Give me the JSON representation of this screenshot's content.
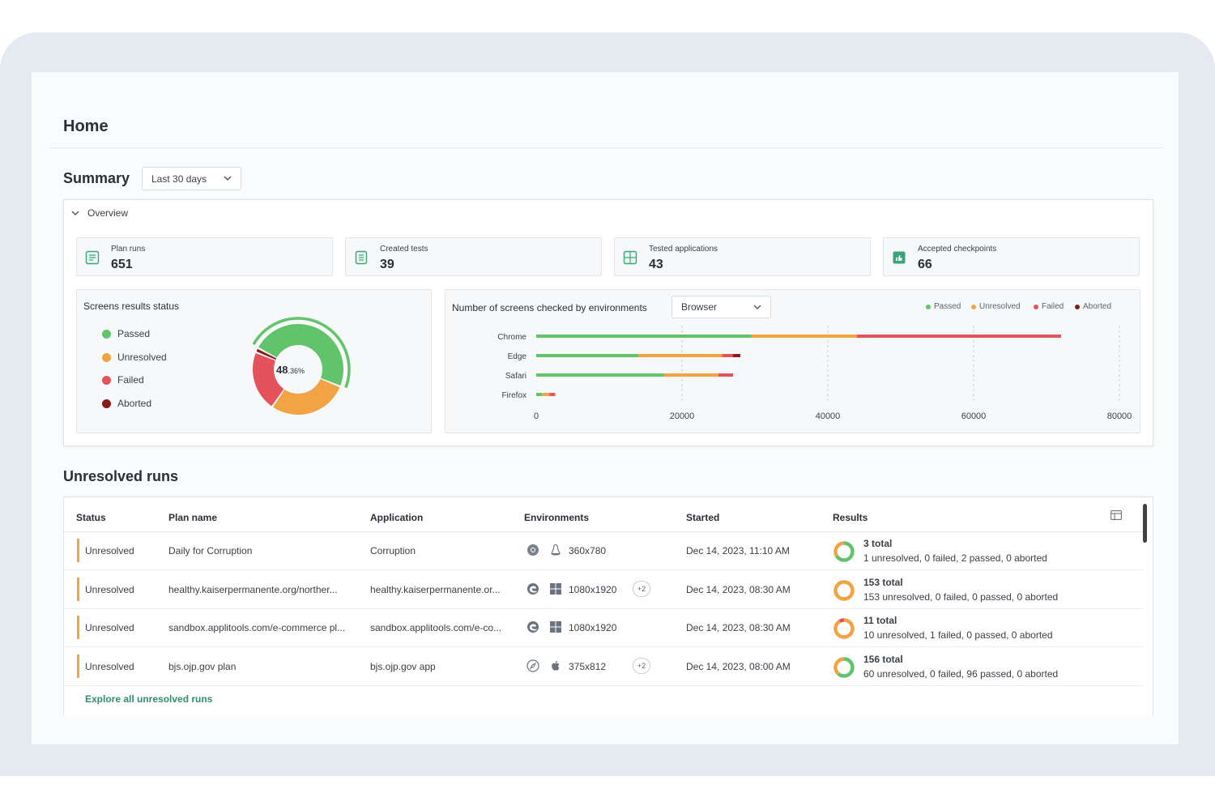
{
  "page": {
    "title": "Home"
  },
  "summary": {
    "title": "Summary",
    "range": {
      "selected": "Last 30 days"
    },
    "overview_label": "Overview",
    "stats": [
      {
        "label": "Plan runs",
        "value": "651",
        "icon": "plan-runs-icon"
      },
      {
        "label": "Created tests",
        "value": "39",
        "icon": "created-tests-icon"
      },
      {
        "label": "Tested applications",
        "value": "43",
        "icon": "tested-applications-icon"
      },
      {
        "label": "Accepted checkpoints",
        "value": "66",
        "icon": "accepted-checkpoints-icon"
      }
    ]
  },
  "screens_status": {
    "title": "Screens results status",
    "legend": [
      "Passed",
      "Unresolved",
      "Failed",
      "Aborted"
    ],
    "center_value": "48",
    "center_decimal": ".36%"
  },
  "env_chart": {
    "title": "Number of screens checked by environments",
    "selected": "Browser",
    "legend": [
      "Passed",
      "Unresolved",
      "Failed",
      "Aborted"
    ]
  },
  "colors": {
    "passed": "#62c46a",
    "unresolved": "#f2a444",
    "failed": "#e4525c",
    "aborted": "#8b1a1a",
    "accent": "#2f8f6a"
  },
  "chart_data": {
    "type": "bar",
    "orientation": "horizontal",
    "stacked": true,
    "categories": [
      "Chrome",
      "Edge",
      "Safari",
      "Firefox"
    ],
    "series": [
      {
        "name": "Passed",
        "values": [
          29500,
          14000,
          17500,
          800
        ]
      },
      {
        "name": "Unresolved",
        "values": [
          14500,
          11500,
          7500,
          1000
        ]
      },
      {
        "name": "Failed",
        "values": [
          28000,
          1500,
          2000,
          800
        ]
      },
      {
        "name": "Aborted",
        "values": [
          0,
          1000,
          0,
          0
        ]
      }
    ],
    "xticks": [
      "0",
      "20000",
      "40000",
      "60000",
      "80000"
    ],
    "xlim": [
      0,
      80000
    ],
    "grid": "vertical",
    "legend_position": "top-right"
  },
  "donut_data": {
    "type": "pie",
    "series": [
      {
        "name": "Passed",
        "percent": 48.36
      },
      {
        "name": "Unresolved",
        "percent": 28.5
      },
      {
        "name": "Failed",
        "percent": 21.5
      },
      {
        "name": "Aborted",
        "percent": 1.64
      }
    ]
  },
  "unresolved": {
    "title": "Unresolved runs",
    "columns": [
      "Status",
      "Plan name",
      "Application",
      "Environments",
      "Started",
      "Results"
    ],
    "rows": [
      {
        "status": "Unresolved",
        "plan": "Daily for Corruption",
        "app": "Corruption",
        "env_icons": [
          "chrome-icon",
          "linux-icon"
        ],
        "resolution": "360x780",
        "extra": "",
        "started": "Dec 14, 2023, 11:10 AM",
        "total": "3 total",
        "detail": "1 unresolved, 0 failed, 2 passed, 0 aborted",
        "ring": {
          "passed": 2,
          "unresolved": 1,
          "failed": 0
        }
      },
      {
        "status": "Unresolved",
        "plan": "healthy.kaiserpermanente.org/norther...",
        "app": "healthy.kaiserpermanente.or...",
        "env_icons": [
          "edge-icon",
          "windows-icon"
        ],
        "resolution": "1080x1920",
        "extra": "+2",
        "started": "Dec 14, 2023, 08:30 AM",
        "total": "153 total",
        "detail": "153 unresolved, 0 failed, 0 passed, 0 aborted",
        "ring": {
          "passed": 0,
          "unresolved": 153,
          "failed": 0
        }
      },
      {
        "status": "Unresolved",
        "plan": "sandbox.applitools.com/e-commerce pl...",
        "app": "sandbox.applitools.com/e-co...",
        "env_icons": [
          "edge-icon",
          "windows-icon"
        ],
        "resolution": "1080x1920",
        "extra": "",
        "started": "Dec 14, 2023, 08:30 AM",
        "total": "11 total",
        "detail": "10 unresolved, 1 failed, 0 passed, 0 aborted",
        "ring": {
          "passed": 0,
          "unresolved": 10,
          "failed": 1
        }
      },
      {
        "status": "Unresolved",
        "plan": "bjs.ojp.gov plan",
        "app": "bjs.ojp.gov app",
        "env_icons": [
          "safari-icon",
          "apple-icon"
        ],
        "resolution": "375x812",
        "extra": "+2",
        "started": "Dec 14, 2023, 08:00 AM",
        "total": "156 total",
        "detail": "60 unresolved, 0 failed, 96 passed, 0 aborted",
        "ring": {
          "passed": 96,
          "unresolved": 60,
          "failed": 0
        }
      }
    ],
    "explore_label": "Explore all unresolved runs"
  }
}
